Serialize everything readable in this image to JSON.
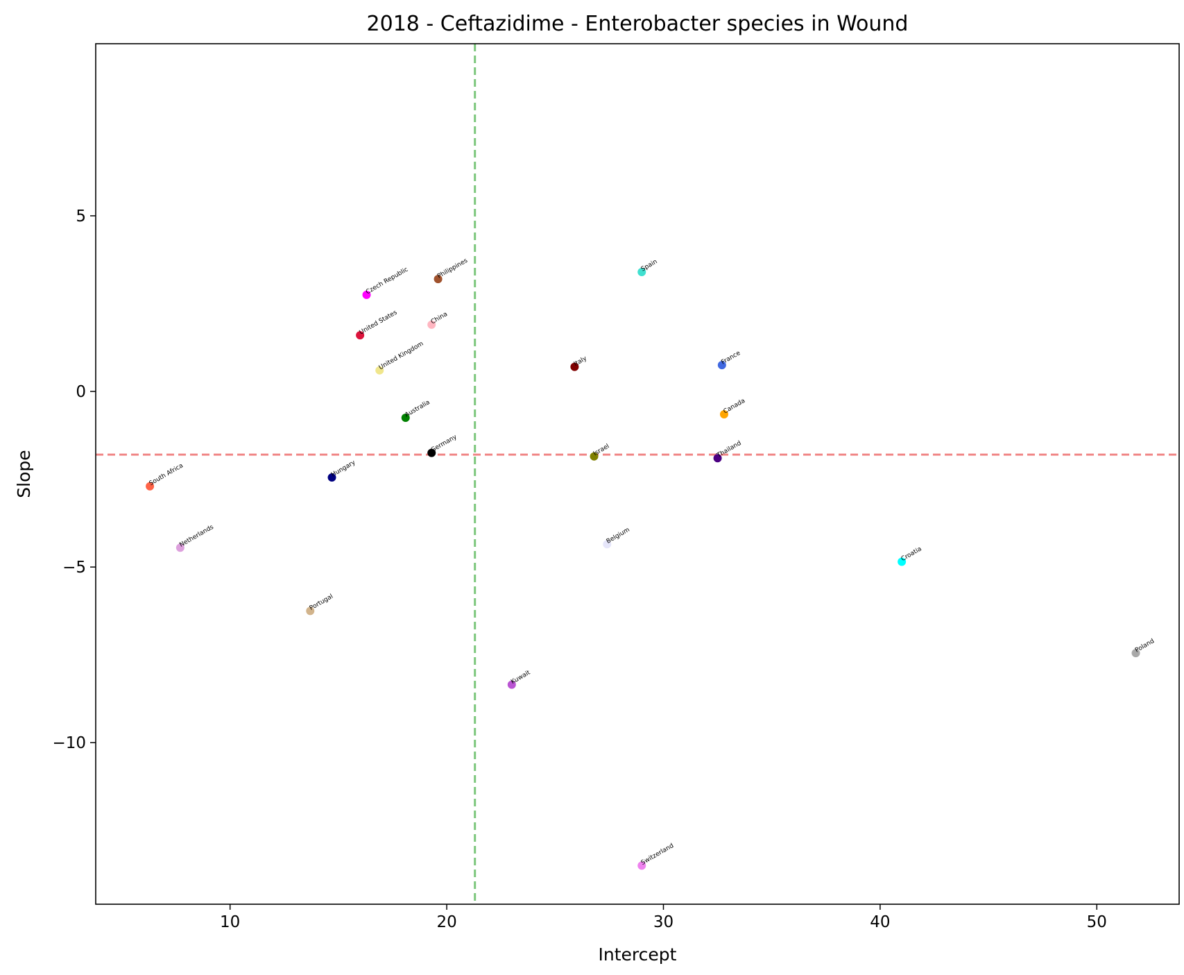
{
  "chart_data": {
    "type": "scatter",
    "title": "2018 - Ceftazidime - Enterobacter species in Wound",
    "xlabel": "Intercept",
    "ylabel": "Slope",
    "xlim": [
      3.8,
      53.8
    ],
    "ylim": [
      -14.6,
      9.9
    ],
    "xticks": [
      10,
      20,
      30,
      40,
      50
    ],
    "yticks": [
      5,
      0,
      -5,
      -10
    ],
    "ytick_labels": [
      "5",
      "0",
      "−5",
      "−10"
    ],
    "grid": false,
    "reference_lines": [
      {
        "orientation": "vertical",
        "x": 21.3,
        "color": "#5cb85c"
      },
      {
        "orientation": "horizontal",
        "y": -1.8,
        "color": "#f08080"
      }
    ],
    "points": [
      {
        "label": "South Africa",
        "x": 6.3,
        "y": -2.7,
        "color": "#ff6347"
      },
      {
        "label": "Netherlands",
        "x": 7.7,
        "y": -4.45,
        "color": "#dda0dd"
      },
      {
        "label": "Portugal",
        "x": 13.7,
        "y": -6.25,
        "color": "#d2b48c"
      },
      {
        "label": "Hungary",
        "x": 14.7,
        "y": -2.45,
        "color": "#000080"
      },
      {
        "label": "United States",
        "x": 16.0,
        "y": 1.6,
        "color": "#dc143c"
      },
      {
        "label": "Czech Republic",
        "x": 16.3,
        "y": 2.75,
        "color": "#ff00ff"
      },
      {
        "label": "United Kingdom",
        "x": 16.9,
        "y": 0.6,
        "color": "#f0e68c"
      },
      {
        "label": "Australia",
        "x": 18.1,
        "y": -0.75,
        "color": "#008000"
      },
      {
        "label": "Germany",
        "x": 19.3,
        "y": -1.75,
        "color": "#000000"
      },
      {
        "label": "China",
        "x": 19.3,
        "y": 1.9,
        "color": "#ffb6c1"
      },
      {
        "label": "Philippines",
        "x": 19.6,
        "y": 3.2,
        "color": "#a0522d"
      },
      {
        "label": "Kuwait",
        "x": 23.0,
        "y": -8.35,
        "color": "#ba55d3"
      },
      {
        "label": "Italy",
        "x": 25.9,
        "y": 0.7,
        "color": "#800000"
      },
      {
        "label": "Israel",
        "x": 26.8,
        "y": -1.85,
        "color": "#808000"
      },
      {
        "label": "Belgium",
        "x": 27.4,
        "y": -4.35,
        "color": "#e6e6fa"
      },
      {
        "label": "Spain",
        "x": 29.0,
        "y": 3.4,
        "color": "#40e0d0"
      },
      {
        "label": "Switzerland",
        "x": 29.0,
        "y": -13.5,
        "color": "#ee82ee"
      },
      {
        "label": "Thailand",
        "x": 32.5,
        "y": -1.9,
        "color": "#4b0082"
      },
      {
        "label": "France",
        "x": 32.7,
        "y": 0.75,
        "color": "#4169e1"
      },
      {
        "label": "Canada",
        "x": 32.8,
        "y": -0.65,
        "color": "#ffa500"
      },
      {
        "label": "Croatia",
        "x": 41.0,
        "y": -4.85,
        "color": "#00ffff"
      },
      {
        "label": "Poland",
        "x": 51.8,
        "y": -7.45,
        "color": "#a9a9a9"
      }
    ]
  }
}
